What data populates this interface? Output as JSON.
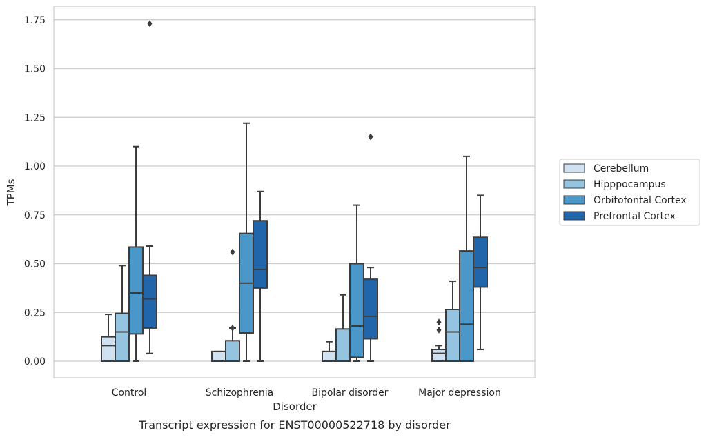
{
  "chart_data": {
    "type": "box",
    "title": "",
    "caption": "Transcript expression for ENST00000522718 by disorder",
    "xlabel": "Disorder",
    "ylabel": "TPMs",
    "ylim": [
      -0.085,
      1.82
    ],
    "yticks": [
      "0.00",
      "0.25",
      "0.50",
      "0.75",
      "1.00",
      "1.25",
      "1.50",
      "1.75"
    ],
    "grid": "horizontal",
    "legend_position": "right",
    "categories": [
      "Control",
      "Schizophrenia",
      "Bipolar disorder",
      "Major depression"
    ],
    "series": [
      {
        "name": "Cerebellum",
        "color": "#d0e1f2",
        "boxes": [
          {
            "whisker_low": 0.0,
            "q1": 0.0,
            "median": 0.08,
            "q3": 0.125,
            "whisker_high": 0.24,
            "outliers": []
          },
          {
            "whisker_low": 0.0,
            "q1": 0.0,
            "median": 0.0,
            "q3": 0.05,
            "whisker_high": 0.05,
            "outliers": []
          },
          {
            "whisker_low": 0.0,
            "q1": 0.0,
            "median": 0.0,
            "q3": 0.05,
            "whisker_high": 0.1,
            "outliers": []
          },
          {
            "whisker_low": 0.0,
            "q1": 0.0,
            "median": 0.04,
            "q3": 0.06,
            "whisker_high": 0.08,
            "outliers": [
              0.16,
              0.2
            ]
          }
        ]
      },
      {
        "name": "Hipppocampus",
        "color": "#94c4df",
        "boxes": [
          {
            "whisker_low": 0.0,
            "q1": 0.0,
            "median": 0.15,
            "q3": 0.245,
            "whisker_high": 0.49,
            "outliers": []
          },
          {
            "whisker_low": 0.0,
            "q1": 0.0,
            "median": 0.0,
            "q3": 0.105,
            "whisker_high": 0.17,
            "outliers": [
              0.56,
              0.17
            ]
          },
          {
            "whisker_low": 0.0,
            "q1": 0.0,
            "median": 0.0,
            "q3": 0.165,
            "whisker_high": 0.34,
            "outliers": []
          },
          {
            "whisker_low": 0.0,
            "q1": 0.0,
            "median": 0.15,
            "q3": 0.265,
            "whisker_high": 0.41,
            "outliers": []
          }
        ]
      },
      {
        "name": "Orbitofontal Cortex",
        "color": "#4a98c9",
        "boxes": [
          {
            "whisker_low": 0.0,
            "q1": 0.14,
            "median": 0.35,
            "q3": 0.585,
            "whisker_high": 1.1,
            "outliers": []
          },
          {
            "whisker_low": 0.0,
            "q1": 0.145,
            "median": 0.4,
            "q3": 0.655,
            "whisker_high": 1.22,
            "outliers": []
          },
          {
            "whisker_low": 0.0,
            "q1": 0.02,
            "median": 0.18,
            "q3": 0.5,
            "whisker_high": 0.8,
            "outliers": []
          },
          {
            "whisker_low": 0.0,
            "q1": 0.0,
            "median": 0.19,
            "q3": 0.565,
            "whisker_high": 1.05,
            "outliers": []
          }
        ]
      },
      {
        "name": "Prefrontal Cortex",
        "color": "#2165ab",
        "boxes": [
          {
            "whisker_low": 0.04,
            "q1": 0.17,
            "median": 0.32,
            "q3": 0.44,
            "whisker_high": 0.59,
            "outliers": [
              1.73
            ]
          },
          {
            "whisker_low": 0.0,
            "q1": 0.375,
            "median": 0.47,
            "q3": 0.72,
            "whisker_high": 0.87,
            "outliers": []
          },
          {
            "whisker_low": 0.0,
            "q1": 0.115,
            "median": 0.23,
            "q3": 0.42,
            "whisker_high": 0.48,
            "outliers": [
              1.15
            ]
          },
          {
            "whisker_low": 0.06,
            "q1": 0.38,
            "median": 0.48,
            "q3": 0.635,
            "whisker_high": 0.85,
            "outliers": []
          }
        ]
      }
    ]
  }
}
